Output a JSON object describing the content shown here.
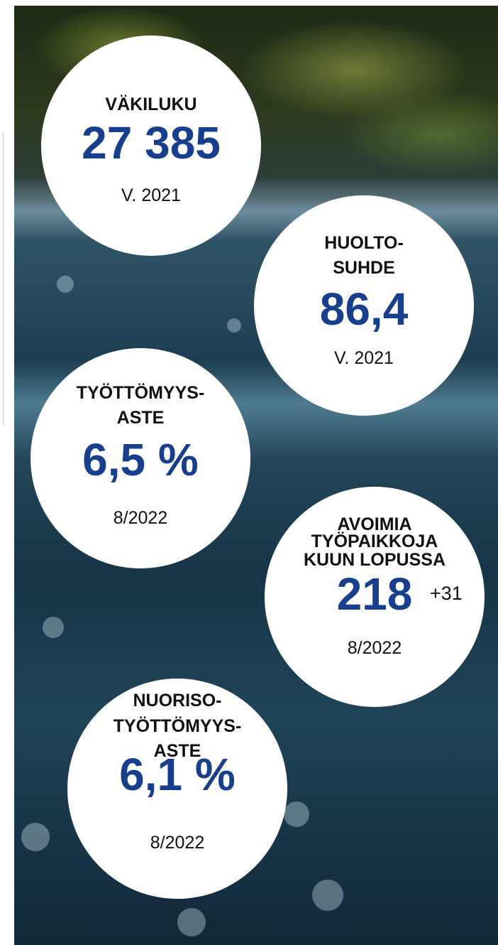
{
  "circles": [
    {
      "title": [
        "VÄKILUKU"
      ],
      "value": "27 385",
      "note": "V. 2021"
    },
    {
      "title": [
        "HUOLTO-",
        "SUHDE"
      ],
      "value": "86,4",
      "note": "V. 2021"
    },
    {
      "title": [
        "TYÖTTÖMYYS-",
        "ASTE"
      ],
      "value": "6,5 %",
      "note": "8/2022"
    },
    {
      "title": [
        "AVOIMIA",
        "TYÖPAIKKOJA",
        "KUUN LOPUSSA"
      ],
      "value": "218",
      "extra": "+31",
      "note": "8/2022"
    },
    {
      "title": [
        "NUORISO-",
        "TYÖTTÖMYYS-",
        "ASTE"
      ],
      "value": "6,1 %",
      "note": "8/2022"
    }
  ]
}
